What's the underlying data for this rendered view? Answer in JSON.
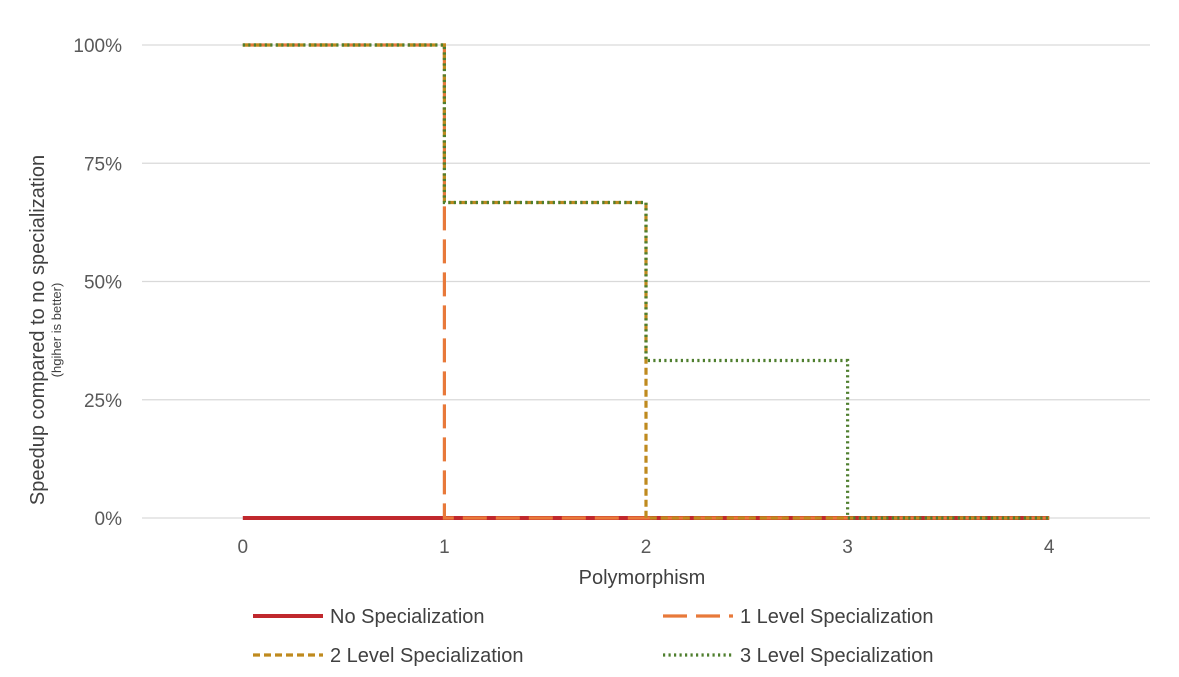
{
  "chart_data": {
    "type": "line",
    "step": true,
    "xlabel": "Polymorphism",
    "ylabel": "Speedup compared to no specialization",
    "ylabel_sub": "(hgiher is better)",
    "x_ticks": [
      "0",
      "1",
      "2",
      "3",
      "4"
    ],
    "y_ticks": [
      "0%",
      "25%",
      "50%",
      "75%",
      "100%"
    ],
    "xlim": [
      -0.5,
      4.5
    ],
    "ylim": [
      0,
      100
    ],
    "grid": true,
    "legend_position": "bottom",
    "series": [
      {
        "name": "No Specialization",
        "color": "#c0282d",
        "style": "solid",
        "x": [
          0,
          1,
          2,
          3,
          4
        ],
        "values": [
          0,
          0,
          0,
          0,
          0
        ]
      },
      {
        "name": "1 Level Specialization",
        "color": "#e8793a",
        "style": "long-dash",
        "x": [
          0,
          1,
          2,
          3,
          4
        ],
        "values": [
          100,
          0,
          0,
          0,
          0
        ]
      },
      {
        "name": "2 Level Specialization",
        "color": "#bf8a1e",
        "style": "dash",
        "x": [
          0,
          1,
          2,
          3,
          4
        ],
        "values": [
          100,
          66.7,
          0,
          0,
          0
        ]
      },
      {
        "name": "3 Level Specialization",
        "color": "#4f7f2f",
        "style": "dot",
        "x": [
          0,
          1,
          2,
          3,
          4
        ],
        "values": [
          100,
          66.7,
          33.3,
          0,
          0
        ]
      }
    ]
  }
}
